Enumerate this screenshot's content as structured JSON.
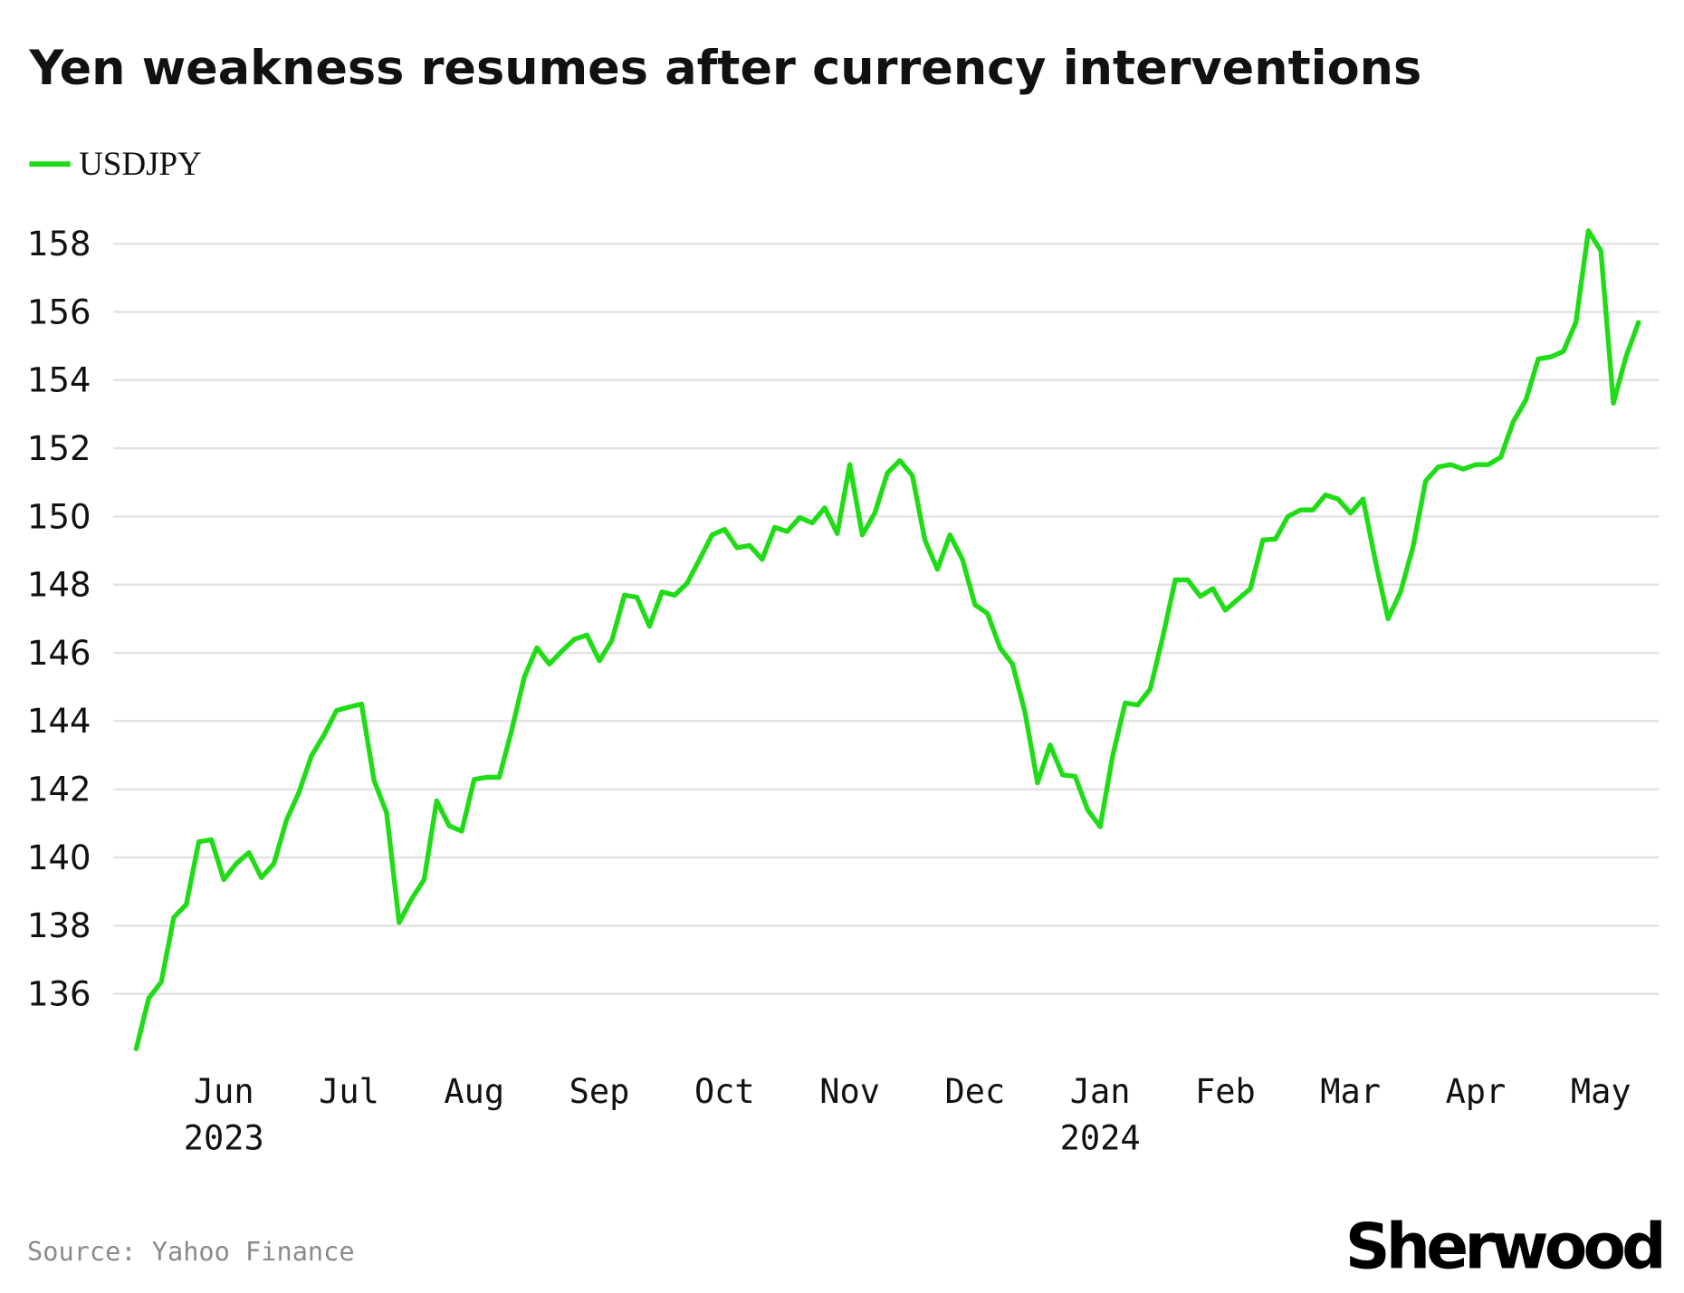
{
  "chart_data": {
    "type": "line",
    "title": "Yen weakness resumes after currency interventions",
    "source": "Source: Yahoo Finance",
    "brand": "Sherwood",
    "categories": [
      null,
      null,
      null,
      null,
      null,
      null,
      null,
      "Jun",
      null,
      null,
      null,
      null,
      null,
      null,
      null,
      null,
      null,
      "Jul",
      null,
      null,
      null,
      null,
      null,
      null,
      null,
      null,
      null,
      "Aug",
      null,
      null,
      null,
      null,
      null,
      null,
      null,
      null,
      null,
      "Sep",
      null,
      null,
      null,
      null,
      null,
      null,
      null,
      null,
      null,
      "Oct",
      null,
      null,
      null,
      null,
      null,
      null,
      null,
      null,
      null,
      "Nov",
      null,
      null,
      null,
      null,
      null,
      null,
      null,
      null,
      null,
      "Dec",
      null,
      null,
      null,
      null,
      null,
      null,
      null,
      null,
      null,
      "Jan",
      null,
      null,
      null,
      null,
      null,
      null,
      null,
      null,
      null,
      "Feb",
      null,
      null,
      null,
      null,
      null,
      null,
      null,
      null,
      null,
      "Mar",
      null,
      null,
      null,
      null,
      null,
      null,
      null,
      null,
      null,
      "Apr",
      null,
      null,
      null,
      null,
      null,
      null,
      null,
      null,
      null,
      "May",
      null,
      null,
      null
    ],
    "category_years": [
      null,
      null,
      null,
      null,
      null,
      null,
      null,
      "2023",
      null,
      null,
      null,
      null,
      null,
      null,
      null,
      null,
      null,
      null,
      null,
      null,
      null,
      null,
      null,
      null,
      null,
      null,
      null,
      null,
      null,
      null,
      null,
      null,
      null,
      null,
      null,
      null,
      null,
      null,
      null,
      null,
      null,
      null,
      null,
      null,
      null,
      null,
      null,
      null,
      null,
      null,
      null,
      null,
      null,
      null,
      null,
      null,
      null,
      null,
      null,
      null,
      null,
      null,
      null,
      null,
      null,
      null,
      null,
      null,
      null,
      null,
      null,
      null,
      null,
      null,
      null,
      null,
      null,
      "2024",
      null,
      null,
      null,
      null,
      null,
      null,
      null,
      null,
      null,
      null,
      null,
      null,
      null,
      null,
      null,
      null,
      null,
      null,
      null,
      null,
      null,
      null,
      null,
      null,
      null,
      null,
      null,
      null,
      null,
      null,
      null,
      null,
      null,
      null,
      null,
      null,
      null,
      null,
      null,
      null,
      null,
      null,
      null
    ],
    "series": [
      {
        "name": "USDJPY",
        "color": "#1fdc16",
        "values": [
          134.39,
          135.87,
          136.35,
          138.24,
          138.62,
          140.46,
          140.52,
          139.35,
          139.82,
          140.14,
          139.41,
          139.82,
          141.09,
          141.91,
          142.98,
          143.59,
          144.31,
          144.41,
          144.5,
          142.26,
          141.31,
          138.09,
          138.78,
          139.35,
          141.66,
          140.93,
          140.77,
          142.29,
          142.35,
          142.35,
          143.74,
          145.29,
          146.15,
          145.67,
          146.05,
          146.4,
          146.52,
          145.77,
          146.37,
          147.69,
          147.63,
          146.78,
          147.79,
          147.69,
          148.04,
          148.74,
          149.46,
          149.62,
          149.08,
          149.15,
          148.74,
          149.68,
          149.56,
          149.97,
          149.81,
          150.25,
          149.5,
          151.52,
          149.46,
          150.1,
          151.27,
          151.64,
          151.2,
          149.31,
          148.45,
          149.46,
          148.74,
          147.41,
          147.16,
          146.15,
          145.67,
          144.25,
          142.19,
          143.3,
          142.42,
          142.38,
          141.4,
          140.9,
          142.98,
          144.53,
          144.47,
          144.94,
          146.46,
          148.14,
          148.14,
          147.66,
          147.88,
          147.25,
          147.57,
          147.88,
          149.31,
          149.34,
          150.0,
          150.19,
          150.19,
          150.63,
          150.51,
          150.1,
          150.51,
          148.67,
          147.0,
          147.79,
          149.12,
          151.04,
          151.45,
          151.52,
          151.39,
          151.52,
          151.52,
          151.74,
          152.78,
          153.41,
          154.62,
          154.68,
          154.84,
          155.69,
          158.38,
          157.79,
          153.32,
          154.68,
          155.69
        ]
      }
    ],
    "ylim": [
      134,
      158.5
    ],
    "yticks": [
      136,
      138,
      140,
      142,
      144,
      146,
      148,
      150,
      152,
      154,
      156,
      158
    ],
    "grid": true,
    "legend": "top-left"
  }
}
